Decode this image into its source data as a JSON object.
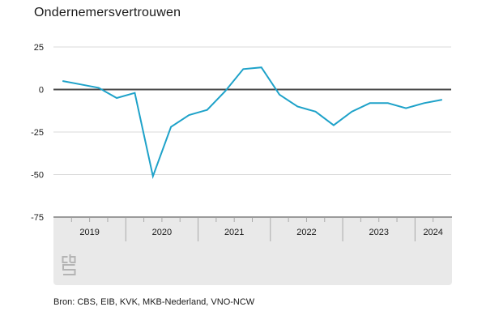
{
  "title": "Ondernemersvertrouwen",
  "source": "Bron: CBS, EIB, KVK, MKB-Nederland, VNO-NCW",
  "logo_name": "cbs-logo",
  "colors": {
    "line": "#1ea2c9",
    "grid": "#dadada",
    "zero_line": "#4a4a4a",
    "band_fill": "#e9e9e9",
    "band_border": "#9b9b9b",
    "tick": "#aaaaaa",
    "text": "#1a1a1a",
    "logo": "#b4b4b4"
  },
  "chart_data": {
    "type": "line",
    "title": "Ondernemersvertrouwen",
    "x_unit": "quarter",
    "categories": [
      "2019Q1",
      "2019Q2",
      "2019Q3",
      "2019Q4",
      "2020Q1",
      "2020Q2",
      "2020Q3",
      "2020Q4",
      "2021Q1",
      "2021Q2",
      "2021Q3",
      "2021Q4",
      "2022Q1",
      "2022Q2",
      "2022Q3",
      "2022Q4",
      "2023Q1",
      "2023Q2",
      "2023Q3",
      "2023Q4",
      "2024Q1",
      "2024Q2"
    ],
    "values": [
      5,
      3,
      1,
      -5,
      -2,
      -51,
      -22,
      -15,
      -12,
      -1,
      12,
      13,
      -3,
      -10,
      -13,
      -21,
      -13,
      -8,
      -8,
      -11,
      -8,
      -6
    ],
    "year_labels": [
      "2019",
      "2020",
      "2021",
      "2022",
      "2023",
      "2024"
    ],
    "y_ticks": [
      25,
      0,
      -25,
      -50,
      -75
    ],
    "ylim": [
      -75,
      25
    ],
    "grid": true,
    "legend": false,
    "xlabel": "",
    "ylabel": ""
  }
}
